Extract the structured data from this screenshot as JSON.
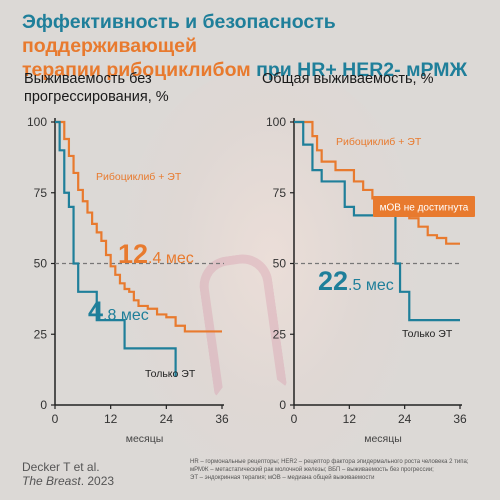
{
  "title": {
    "part1": "Эффективность и безопасность ",
    "part2": "поддерживающей",
    "part3": "терапии рибоциклибом",
    "part4": " при HR+ HER2- мРМЖ"
  },
  "colors": {
    "teal": "#1f7f9a",
    "orange": "#e87a2e",
    "dashed": "#777777"
  },
  "chart_data": [
    {
      "type": "line",
      "panel": "left",
      "title": "Выживаемость без прогрессирования, %",
      "xlabel": "месяцы",
      "ylabel": "",
      "xlim": [
        0,
        36
      ],
      "ylim": [
        0,
        100
      ],
      "xticks": [
        0,
        12,
        24,
        36
      ],
      "yticks": [
        0,
        25,
        50,
        75,
        100
      ],
      "median_line": 50,
      "series": [
        {
          "name": "Рибоциклиб + ЭТ",
          "color": "#e87a2e",
          "step": true,
          "x": [
            0,
            2,
            3,
            4,
            5,
            6,
            7,
            8,
            9,
            10,
            11,
            12,
            13,
            14,
            15,
            16,
            17,
            18,
            20,
            22,
            24,
            26,
            28,
            36
          ],
          "y": [
            100,
            94,
            88,
            82,
            76,
            72,
            68,
            64,
            61,
            58,
            53,
            49,
            46,
            43,
            41,
            40,
            37,
            35,
            34,
            32,
            31,
            28,
            26,
            26
          ]
        },
        {
          "name": "Только ЭТ",
          "color": "#1f7f9a",
          "step": true,
          "x": [
            0,
            1,
            2,
            3,
            4,
            5,
            9,
            15,
            26
          ],
          "y": [
            100,
            90,
            75,
            70,
            50,
            40,
            30,
            20,
            10
          ]
        }
      ],
      "annotations": [
        {
          "series": "Рибоциклиб + ЭТ",
          "big": "12",
          "small": ".4 мес"
        },
        {
          "series": "Только ЭТ",
          "big": "4",
          "small": ".8 мес"
        }
      ]
    },
    {
      "type": "line",
      "panel": "right",
      "title": "Общая выживаемость, %",
      "xlabel": "месяцы",
      "ylabel": "",
      "xlim": [
        0,
        36
      ],
      "ylim": [
        0,
        100
      ],
      "xticks": [
        0,
        12,
        24,
        36
      ],
      "yticks": [
        0,
        25,
        50,
        75,
        100
      ],
      "median_line": 50,
      "series": [
        {
          "name": "Рибоциклиб + ЭТ",
          "color": "#e87a2e",
          "step": true,
          "x": [
            0,
            4,
            5,
            6,
            9,
            13,
            15,
            17,
            21,
            23,
            25,
            27,
            29,
            31,
            33,
            36
          ],
          "y": [
            100,
            95,
            90,
            86,
            83,
            79,
            76,
            73,
            70,
            68,
            66,
            63,
            60,
            59,
            57,
            57
          ]
        },
        {
          "name": "Только ЭТ",
          "color": "#1f7f9a",
          "step": true,
          "x": [
            0,
            2,
            4,
            6,
            11,
            13,
            22,
            23,
            25,
            29,
            36
          ],
          "y": [
            100,
            92,
            83,
            79,
            70,
            67,
            50,
            40,
            30,
            30,
            30
          ]
        }
      ],
      "annotations": [
        {
          "series": "Рибоциклиб + ЭТ",
          "label": "мОВ не достигнута"
        },
        {
          "series": "Только ЭТ",
          "big": "22",
          "small": ".5 мес"
        }
      ]
    }
  ],
  "footer": {
    "authors": "Decker T et al.",
    "journal": "The Breast",
    "year": ". 2023"
  },
  "footnotes": [
    "HR – гормональные рецепторы; HER2 – рецептор фактора эпидермального роста человека 2 типа;",
    "мРМЖ – метастатический рак молочной железы; ВБП – выживаемость без прогрессии;",
    "ЭТ – эндокринная терапия; мОВ – медиана общей выживаемости"
  ]
}
